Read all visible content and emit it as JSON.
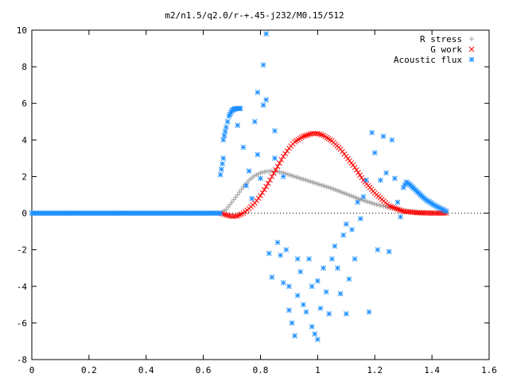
{
  "chart_data": {
    "type": "scatter",
    "title": "m2/n1.5/q2.0/r-+.45-j232/M0.15/512",
    "xlabel": "",
    "ylabel": "",
    "xlim": [
      0,
      1.6
    ],
    "ylim": [
      -8,
      10
    ],
    "x_ticks": [
      "0",
      "0.2",
      "0.4",
      "0.6",
      "0.8",
      "1",
      "1.2",
      "1.4",
      "1.6"
    ],
    "y_ticks": [
      "-8",
      "-6",
      "-4",
      "-2",
      "0",
      "2",
      "4",
      "6",
      "8",
      "10"
    ],
    "grid": false,
    "legend_position": "top-right",
    "series": [
      {
        "name": "R stress",
        "marker": "+",
        "color": "#a0a0a0",
        "points": [
          [
            0.66,
            0.0
          ],
          [
            0.68,
            0.2
          ],
          [
            0.7,
            0.6
          ],
          [
            0.72,
            1.0
          ],
          [
            0.74,
            1.45
          ],
          [
            0.76,
            1.8
          ],
          [
            0.78,
            2.05
          ],
          [
            0.8,
            2.2
          ],
          [
            0.82,
            2.28
          ],
          [
            0.84,
            2.3
          ],
          [
            0.86,
            2.27
          ],
          [
            0.88,
            2.2
          ],
          [
            0.9,
            2.1
          ],
          [
            0.95,
            1.85
          ],
          [
            1.0,
            1.6
          ],
          [
            1.05,
            1.35
          ],
          [
            1.1,
            1.05
          ],
          [
            1.15,
            0.75
          ],
          [
            1.2,
            0.5
          ],
          [
            1.25,
            0.3
          ],
          [
            1.3,
            0.15
          ],
          [
            1.35,
            0.07
          ],
          [
            1.4,
            0.03
          ],
          [
            1.45,
            0.0
          ]
        ]
      },
      {
        "name": "G work",
        "marker": "x",
        "color": "#ff0000",
        "points": [
          [
            0.66,
            0.0
          ],
          [
            0.68,
            -0.1
          ],
          [
            0.7,
            -0.18
          ],
          [
            0.72,
            -0.15
          ],
          [
            0.74,
            0.0
          ],
          [
            0.76,
            0.25
          ],
          [
            0.78,
            0.55
          ],
          [
            0.8,
            0.95
          ],
          [
            0.82,
            1.45
          ],
          [
            0.84,
            2.0
          ],
          [
            0.86,
            2.55
          ],
          [
            0.88,
            3.1
          ],
          [
            0.9,
            3.55
          ],
          [
            0.92,
            3.9
          ],
          [
            0.95,
            4.2
          ],
          [
            0.98,
            4.35
          ],
          [
            1.0,
            4.35
          ],
          [
            1.02,
            4.25
          ],
          [
            1.05,
            3.95
          ],
          [
            1.08,
            3.5
          ],
          [
            1.1,
            3.1
          ],
          [
            1.13,
            2.5
          ],
          [
            1.16,
            1.8
          ],
          [
            1.2,
            1.1
          ],
          [
            1.25,
            0.4
          ],
          [
            1.3,
            0.1
          ],
          [
            1.35,
            0.02
          ],
          [
            1.4,
            0.0
          ],
          [
            1.45,
            0.0
          ]
        ]
      },
      {
        "name": "Acoustic flux",
        "marker": "*",
        "color": "#1e90ff",
        "points": [
          [
            0.66,
            0.0
          ],
          [
            0.66,
            2.1
          ],
          [
            0.67,
            3.0
          ],
          [
            0.67,
            4.0
          ],
          [
            0.68,
            4.7
          ],
          [
            0.69,
            5.3
          ],
          [
            0.7,
            5.6
          ],
          [
            0.71,
            5.7
          ],
          [
            0.72,
            5.72
          ],
          [
            0.73,
            5.72
          ],
          [
            0.72,
            4.8
          ],
          [
            0.74,
            3.6
          ],
          [
            0.75,
            1.5
          ],
          [
            0.76,
            2.3
          ],
          [
            0.77,
            0.8
          ],
          [
            0.78,
            5.0
          ],
          [
            0.79,
            3.2
          ],
          [
            0.79,
            6.6
          ],
          [
            0.8,
            1.9
          ],
          [
            0.81,
            5.9
          ],
          [
            0.81,
            8.1
          ],
          [
            0.82,
            9.8
          ],
          [
            0.82,
            6.2
          ],
          [
            0.83,
            -2.2
          ],
          [
            0.84,
            -3.5
          ],
          [
            0.85,
            3.0
          ],
          [
            0.85,
            4.5
          ],
          [
            0.86,
            -1.6
          ],
          [
            0.87,
            -2.3
          ],
          [
            0.88,
            -3.8
          ],
          [
            0.88,
            2.0
          ],
          [
            0.89,
            -2.0
          ],
          [
            0.9,
            -4.0
          ],
          [
            0.9,
            -5.3
          ],
          [
            0.91,
            -6.0
          ],
          [
            0.92,
            -6.7
          ],
          [
            0.93,
            -4.5
          ],
          [
            0.93,
            -2.5
          ],
          [
            0.94,
            -3.2
          ],
          [
            0.95,
            -5.0
          ],
          [
            0.96,
            -5.4
          ],
          [
            0.97,
            -2.5
          ],
          [
            0.98,
            -4.0
          ],
          [
            0.98,
            -6.2
          ],
          [
            0.99,
            -6.6
          ],
          [
            1.0,
            -3.7
          ],
          [
            1.0,
            -6.9
          ],
          [
            1.01,
            -5.2
          ],
          [
            1.02,
            -3.0
          ],
          [
            1.03,
            -4.3
          ],
          [
            1.04,
            -5.5
          ],
          [
            1.05,
            -2.5
          ],
          [
            1.06,
            -1.8
          ],
          [
            1.07,
            -3.0
          ],
          [
            1.08,
            -4.4
          ],
          [
            1.09,
            -1.2
          ],
          [
            1.1,
            -0.6
          ],
          [
            1.1,
            -5.5
          ],
          [
            1.11,
            -3.6
          ],
          [
            1.12,
            -0.9
          ],
          [
            1.13,
            -2.5
          ],
          [
            1.14,
            0.6
          ],
          [
            1.15,
            -0.3
          ],
          [
            1.16,
            0.9
          ],
          [
            1.17,
            1.8
          ],
          [
            1.18,
            -5.4
          ],
          [
            1.19,
            4.4
          ],
          [
            1.2,
            3.3
          ],
          [
            1.21,
            -2.0
          ],
          [
            1.22,
            1.8
          ],
          [
            1.23,
            4.2
          ],
          [
            1.24,
            2.2
          ],
          [
            1.25,
            -2.1
          ],
          [
            1.26,
            4.0
          ],
          [
            1.27,
            1.9
          ],
          [
            1.28,
            0.6
          ],
          [
            1.29,
            -0.2
          ],
          [
            1.3,
            1.4
          ],
          [
            1.31,
            1.7
          ],
          [
            1.32,
            1.6
          ],
          [
            1.33,
            1.45
          ],
          [
            1.34,
            1.3
          ],
          [
            1.35,
            1.15
          ],
          [
            1.36,
            1.0
          ],
          [
            1.37,
            0.85
          ],
          [
            1.38,
            0.72
          ],
          [
            1.39,
            0.62
          ],
          [
            1.4,
            0.52
          ],
          [
            1.41,
            0.42
          ],
          [
            1.42,
            0.34
          ],
          [
            1.43,
            0.26
          ],
          [
            1.44,
            0.18
          ],
          [
            1.45,
            0.1
          ]
        ]
      }
    ]
  }
}
